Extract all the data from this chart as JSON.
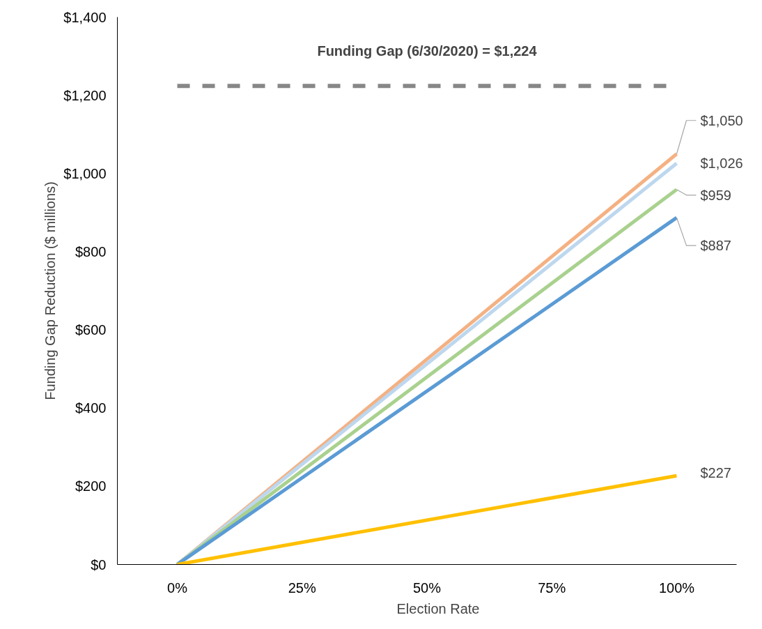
{
  "chart_data": {
    "type": "line",
    "xlabel": "Election Rate",
    "ylabel": "Funding Gap Reduction ($ millions)",
    "x": [
      0,
      100
    ],
    "series": [
      {
        "color": "#f4b183",
        "values": [
          0,
          1050
        ],
        "value_labels": [
          null,
          "$1,050"
        ]
      },
      {
        "color": "#bdd7ee",
        "values": [
          0,
          1026
        ],
        "value_labels": [
          null,
          "$1,026"
        ]
      },
      {
        "color": "#a9d18e",
        "values": [
          0,
          959
        ],
        "value_labels": [
          null,
          "$959"
        ]
      },
      {
        "color": "#5b9bd5",
        "values": [
          0,
          887
        ],
        "value_labels": [
          null,
          "$887"
        ]
      },
      {
        "color": "#ffc000",
        "values": [
          0,
          227
        ],
        "value_labels": [
          null,
          "$227"
        ]
      }
    ],
    "xlim": [
      -12,
      112
    ],
    "xticks": [
      {
        "value": 0,
        "label": "0%"
      },
      {
        "value": 25,
        "label": "25%"
      },
      {
        "value": 50,
        "label": "50%"
      },
      {
        "value": 75,
        "label": "75%"
      },
      {
        "value": 100,
        "label": "100%"
      }
    ],
    "ylim": [
      0,
      1400
    ],
    "yticks": [
      {
        "value": 0,
        "label": "$0"
      },
      {
        "value": 200,
        "label": "$200"
      },
      {
        "value": 400,
        "label": "$400"
      },
      {
        "value": 600,
        "label": "$600"
      },
      {
        "value": 800,
        "label": "$800"
      },
      {
        "value": 1000,
        "label": "$1,000"
      },
      {
        "value": 1200,
        "label": "$1,200"
      },
      {
        "value": 1400,
        "label": "$1,400"
      }
    ],
    "ref_lines": [
      {
        "axis": "y",
        "value": 1224,
        "label": "Funding Gap (6/30/2020) = $1,224",
        "color": "#878787",
        "line_style": "dashed"
      }
    ],
    "grid": false,
    "legend": false,
    "marker": "none",
    "line_style": "solid"
  }
}
